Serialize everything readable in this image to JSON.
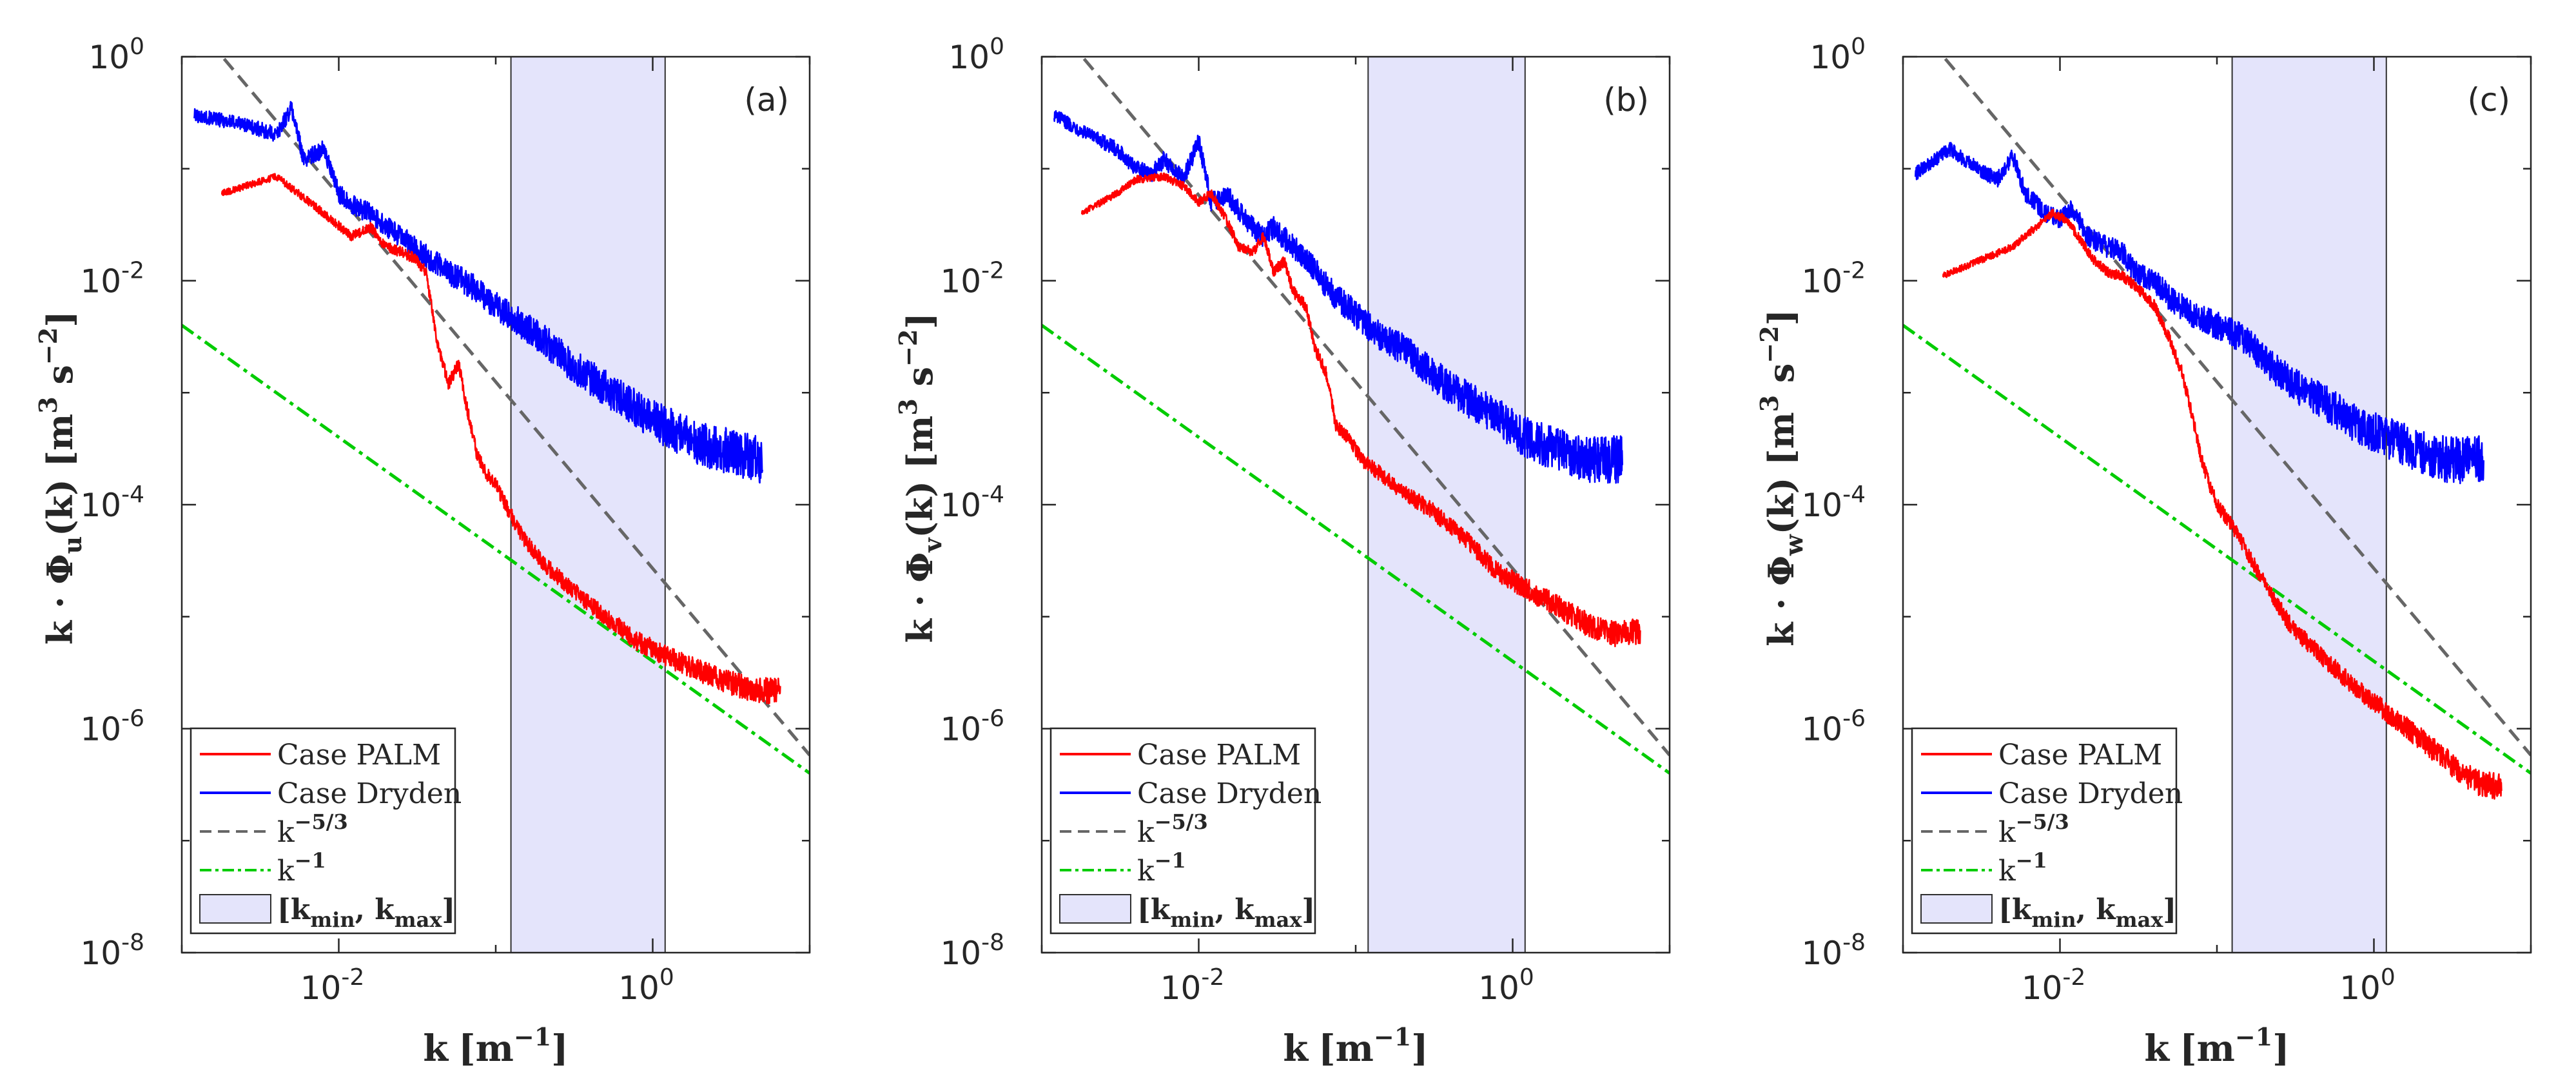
{
  "chart_data": [
    {
      "type": "line",
      "panel_tag": "(a)",
      "xlabel_main": "k",
      "xlabel_unit_base": "[m",
      "xlabel_unit_exp": "−1",
      "xlabel_unit_close": "]",
      "ylabel_prefix": "k · Φ",
      "ylabel_sub": "u",
      "ylabel_mid": "(k) [m",
      "ylabel_exp1": "3",
      "ylabel_mid2": " s",
      "ylabel_exp2": "−2",
      "ylabel_close": "]",
      "xscale": "log",
      "yscale": "log",
      "xlim_exp": [
        -3,
        1
      ],
      "ylim_exp": [
        -8,
        0
      ],
      "x_ticks": [
        {
          "base": "10",
          "exp": "-2",
          "value": 0.01
        },
        {
          "base": "10",
          "exp": "0",
          "value": 1
        }
      ],
      "y_ticks": [
        {
          "base": "10",
          "exp": "0",
          "value": 1
        },
        {
          "base": "10",
          "exp": "-2",
          "value": 0.01
        },
        {
          "base": "10",
          "exp": "-4",
          "value": 0.0001
        },
        {
          "base": "10",
          "exp": "-6",
          "value": 1e-06
        },
        {
          "base": "10",
          "exp": "-8",
          "value": 1e-08
        }
      ],
      "band": {
        "kmin": 0.125,
        "kmax": 1.2
      },
      "ref_k53": {
        "k0": 0.1,
        "y0": 0.00125
      },
      "ref_k1": {
        "k0": 0.1,
        "y0": 4e-05
      },
      "series": [
        {
          "name": "Case PALM",
          "color": "#ff0000",
          "x": [
            0.0018,
            0.004,
            0.006,
            0.009,
            0.012,
            0.016,
            0.02,
            0.025,
            0.03,
            0.036,
            0.042,
            0.05,
            0.058,
            0.066,
            0.075,
            0.085,
            0.1,
            0.12,
            0.15,
            0.2,
            0.3,
            0.5,
            0.8,
            1.2,
            2,
            3,
            4.5,
            6.5
          ],
          "y": [
            0.06,
            0.085,
            0.055,
            0.035,
            0.025,
            0.03,
            0.02,
            0.018,
            0.016,
            0.012,
            0.003,
            0.0012,
            0.0018,
            0.0007,
            0.0003,
            0.0002,
            0.00015,
            9e-05,
            5e-05,
            3e-05,
            1.8e-05,
            1e-05,
            6e-06,
            4.5e-06,
            3.3e-06,
            2.6e-06,
            2.2e-06,
            2.2e-06
          ]
        },
        {
          "name": "Case Dryden",
          "color": "#0000ff",
          "x": [
            0.0012,
            0.0025,
            0.004,
            0.005,
            0.006,
            0.008,
            0.01,
            0.013,
            0.016,
            0.02,
            0.025,
            0.03,
            0.04,
            0.05,
            0.07,
            0.1,
            0.15,
            0.2,
            0.3,
            0.5,
            0.8,
            1.2,
            2,
            3,
            5
          ],
          "y": [
            0.3,
            0.25,
            0.2,
            0.35,
            0.12,
            0.15,
            0.06,
            0.045,
            0.04,
            0.03,
            0.025,
            0.02,
            0.015,
            0.012,
            0.009,
            0.006,
            0.004,
            0.003,
            0.0018,
            0.0011,
            0.0007,
            0.0005,
            0.00035,
            0.0003,
            0.00025
          ]
        }
      ],
      "legend": [
        "Case PALM",
        "Case Dryden",
        "k",
        "k",
        "[k"
      ],
      "legend_exp": [
        "",
        "",
        "−5/3",
        "−1",
        ""
      ],
      "legend_band_sub1": "min",
      "legend_band_sub2": "max",
      "legend_band_mid": ", k",
      "legend_band_close": "]"
    },
    {
      "type": "line",
      "panel_tag": "(b)",
      "xlabel_main": "k",
      "xlabel_unit_base": "[m",
      "xlabel_unit_exp": "−1",
      "xlabel_unit_close": "]",
      "ylabel_prefix": "k · Φ",
      "ylabel_sub": "v",
      "ylabel_mid": "(k) [m",
      "ylabel_exp1": "3",
      "ylabel_mid2": " s",
      "ylabel_exp2": "−2",
      "ylabel_close": "]",
      "xscale": "log",
      "yscale": "log",
      "xlim_exp": [
        -3,
        1
      ],
      "ylim_exp": [
        -8,
        0
      ],
      "x_ticks": [
        {
          "base": "10",
          "exp": "-2",
          "value": 0.01
        },
        {
          "base": "10",
          "exp": "0",
          "value": 1
        }
      ],
      "y_ticks": [
        {
          "base": "10",
          "exp": "0",
          "value": 1
        },
        {
          "base": "10",
          "exp": "-2",
          "value": 0.01
        },
        {
          "base": "10",
          "exp": "-4",
          "value": 0.0001
        },
        {
          "base": "10",
          "exp": "-6",
          "value": 1e-06
        },
        {
          "base": "10",
          "exp": "-8",
          "value": 1e-08
        }
      ],
      "band": {
        "kmin": 0.12,
        "kmax": 1.2
      },
      "ref_k53": {
        "k0": 0.1,
        "y0": 0.00125
      },
      "ref_k1": {
        "k0": 0.1,
        "y0": 4e-05
      },
      "series": [
        {
          "name": "Case PALM",
          "color": "#ff0000",
          "x": [
            0.0018,
            0.003,
            0.004,
            0.006,
            0.008,
            0.01,
            0.012,
            0.015,
            0.018,
            0.022,
            0.026,
            0.03,
            0.035,
            0.04,
            0.048,
            0.055,
            0.065,
            0.075,
            0.09,
            0.11,
            0.15,
            0.2,
            0.3,
            0.5,
            0.8,
            1.2,
            2,
            3,
            4.5,
            6.5
          ],
          "y": [
            0.04,
            0.06,
            0.08,
            0.085,
            0.07,
            0.05,
            0.06,
            0.035,
            0.02,
            0.018,
            0.025,
            0.012,
            0.015,
            0.008,
            0.006,
            0.0025,
            0.0015,
            0.0005,
            0.0004,
            0.00025,
            0.00018,
            0.00013,
            9e-05,
            5e-05,
            2.5e-05,
            1.8e-05,
            1.2e-05,
            8.5e-06,
            7e-06,
            7.5e-06
          ]
        },
        {
          "name": "Case Dryden",
          "color": "#0000ff",
          "x": [
            0.0012,
            0.002,
            0.003,
            0.004,
            0.005,
            0.006,
            0.008,
            0.01,
            0.012,
            0.015,
            0.02,
            0.025,
            0.03,
            0.04,
            0.05,
            0.07,
            0.1,
            0.15,
            0.2,
            0.3,
            0.5,
            0.8,
            1.2,
            2,
            3,
            5
          ],
          "y": [
            0.3,
            0.2,
            0.15,
            0.1,
            0.09,
            0.12,
            0.08,
            0.18,
            0.05,
            0.06,
            0.035,
            0.025,
            0.03,
            0.02,
            0.015,
            0.008,
            0.005,
            0.003,
            0.0025,
            0.0015,
            0.0009,
            0.0006,
            0.0004,
            0.0003,
            0.00025,
            0.00025
          ]
        }
      ],
      "legend": [
        "Case PALM",
        "Case Dryden",
        "k",
        "k",
        "[k"
      ],
      "legend_exp": [
        "",
        "",
        "−5/3",
        "−1",
        ""
      ],
      "legend_band_sub1": "min",
      "legend_band_sub2": "max",
      "legend_band_mid": ", k",
      "legend_band_close": "]"
    },
    {
      "type": "line",
      "panel_tag": "(c)",
      "xlabel_main": "k",
      "xlabel_unit_base": "[m",
      "xlabel_unit_exp": "−1",
      "xlabel_unit_close": "]",
      "ylabel_prefix": "k · Φ",
      "ylabel_sub": "w",
      "ylabel_mid": "(k) [m",
      "ylabel_exp1": "3",
      "ylabel_mid2": " s",
      "ylabel_exp2": "−2",
      "ylabel_close": "]",
      "xscale": "log",
      "yscale": "log",
      "xlim_exp": [
        -3,
        1
      ],
      "ylim_exp": [
        -8,
        0
      ],
      "x_ticks": [
        {
          "base": "10",
          "exp": "-2",
          "value": 0.01
        },
        {
          "base": "10",
          "exp": "0",
          "value": 1
        }
      ],
      "y_ticks": [
        {
          "base": "10",
          "exp": "0",
          "value": 1
        },
        {
          "base": "10",
          "exp": "-2",
          "value": 0.01
        },
        {
          "base": "10",
          "exp": "-4",
          "value": 0.0001
        },
        {
          "base": "10",
          "exp": "-6",
          "value": 1e-06
        },
        {
          "base": "10",
          "exp": "-8",
          "value": 1e-08
        }
      ],
      "band": {
        "kmin": 0.125,
        "kmax": 1.2
      },
      "ref_k53": {
        "k0": 0.1,
        "y0": 0.00125
      },
      "ref_k1": {
        "k0": 0.1,
        "y0": 4e-05
      },
      "series": [
        {
          "name": "Case PALM",
          "color": "#ff0000",
          "x": [
            0.0018,
            0.003,
            0.005,
            0.007,
            0.009,
            0.011,
            0.013,
            0.016,
            0.02,
            0.025,
            0.03,
            0.04,
            0.05,
            0.06,
            0.07,
            0.08,
            0.09,
            0.1,
            0.12,
            0.14,
            0.17,
            0.2,
            0.3,
            0.5,
            0.8,
            1.2,
            2,
            3,
            4.5,
            6.5
          ],
          "y": [
            0.011,
            0.015,
            0.02,
            0.03,
            0.04,
            0.035,
            0.025,
            0.016,
            0.012,
            0.011,
            0.009,
            0.006,
            0.003,
            0.0015,
            0.0006,
            0.00025,
            0.00015,
            0.0001,
            7e-05,
            5e-05,
            3e-05,
            2e-05,
            8e-06,
            4e-06,
            2.2e-06,
            1.4e-06,
            8e-07,
            5e-07,
            3.3e-07,
            3e-07
          ]
        },
        {
          "name": "Case Dryden",
          "color": "#0000ff",
          "x": [
            0.0012,
            0.002,
            0.0025,
            0.003,
            0.004,
            0.005,
            0.006,
            0.007,
            0.008,
            0.01,
            0.012,
            0.015,
            0.02,
            0.025,
            0.03,
            0.04,
            0.05,
            0.07,
            0.1,
            0.15,
            0.2,
            0.3,
            0.5,
            0.8,
            1.2,
            2,
            3,
            5
          ],
          "y": [
            0.09,
            0.15,
            0.12,
            0.1,
            0.08,
            0.13,
            0.06,
            0.05,
            0.04,
            0.035,
            0.045,
            0.025,
            0.02,
            0.018,
            0.012,
            0.01,
            0.007,
            0.005,
            0.004,
            0.003,
            0.002,
            0.0012,
            0.0008,
            0.0005,
            0.0004,
            0.0003,
            0.00025,
            0.00025
          ]
        }
      ],
      "legend": [
        "Case PALM",
        "Case Dryden",
        "k",
        "k",
        "[k"
      ],
      "legend_exp": [
        "",
        "",
        "−5/3",
        "−1",
        ""
      ],
      "legend_band_sub1": "min",
      "legend_band_sub2": "max",
      "legend_band_mid": ", k",
      "legend_band_close": "]"
    }
  ],
  "colors": {
    "palm": "#ff0000",
    "dryden": "#0000ff",
    "ref_k53": "#666666",
    "ref_k1": "#00cc00",
    "band_fill": "#e4e4fb",
    "axis": "#262626"
  }
}
